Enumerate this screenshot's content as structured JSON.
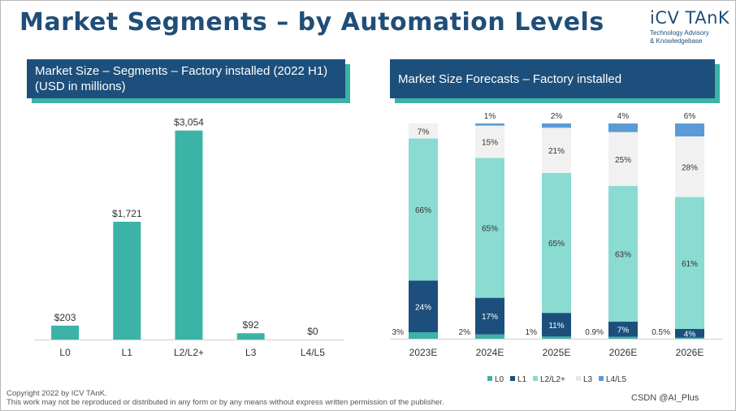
{
  "page": {
    "title": "Market Segments – by Automation Levels",
    "brand": "iCV TAnK",
    "brand_tagline": "Technology Advisory\n& Knowledgebase",
    "footer_line1": "Copyright  2022 by ICV TAnK.",
    "footer_line2": "This work may not be reproduced or distributed in any form or by any means without express written permission of the publisher.",
    "watermark": "CSDN @AI_Plus"
  },
  "colors": {
    "navy": "#1f4e79",
    "teal": "#3bb3a6",
    "L0": "#3bb3a6",
    "L1": "#1c4f7c",
    "L2": "#8adbd1",
    "L3": "#f1f1f1",
    "L45": "#5b9bd5"
  },
  "chart_data": [
    {
      "type": "bar",
      "title": "Market Size – Segments – Factory installed (2022 H1) (USD in millions)",
      "categories": [
        "L0",
        "L1",
        "L2/L2+",
        "L3",
        "L4/L5"
      ],
      "values": [
        203,
        1721,
        3054,
        92,
        0
      ],
      "data_labels": [
        "$203",
        "$1,721",
        "$3,054",
        "$92",
        "$0"
      ],
      "ylim": [
        0,
        3300
      ]
    },
    {
      "type": "bar",
      "stacked": true,
      "normalized": true,
      "title": "Market Size Forecasts – Factory installed",
      "categories": [
        "2023E",
        "2024E",
        "2025E",
        "2026E",
        "2026E"
      ],
      "series": [
        {
          "name": "L0",
          "values": [
            3,
            2,
            1,
            0.9,
            0.5
          ],
          "labels": [
            "3%",
            "2%",
            "1%",
            "0.9%",
            "0.5%"
          ]
        },
        {
          "name": "L1",
          "values": [
            24,
            17,
            11,
            7,
            4
          ],
          "labels": [
            "24%",
            "17%",
            "11%",
            "7%",
            "4%"
          ]
        },
        {
          "name": "L2/L2+",
          "values": [
            66,
            65,
            65,
            63,
            61
          ],
          "labels": [
            "66%",
            "65%",
            "65%",
            "63%",
            "61%"
          ]
        },
        {
          "name": "L3",
          "values": [
            7,
            15,
            21,
            25,
            28
          ],
          "labels": [
            "7%",
            "15%",
            "21%",
            "25%",
            "28%"
          ]
        },
        {
          "name": "L4/L5",
          "values": [
            0,
            1,
            2,
            4,
            6
          ],
          "labels": [
            "",
            "1%",
            "2%",
            "4%",
            "6%"
          ]
        }
      ],
      "legend": "bottom"
    }
  ]
}
